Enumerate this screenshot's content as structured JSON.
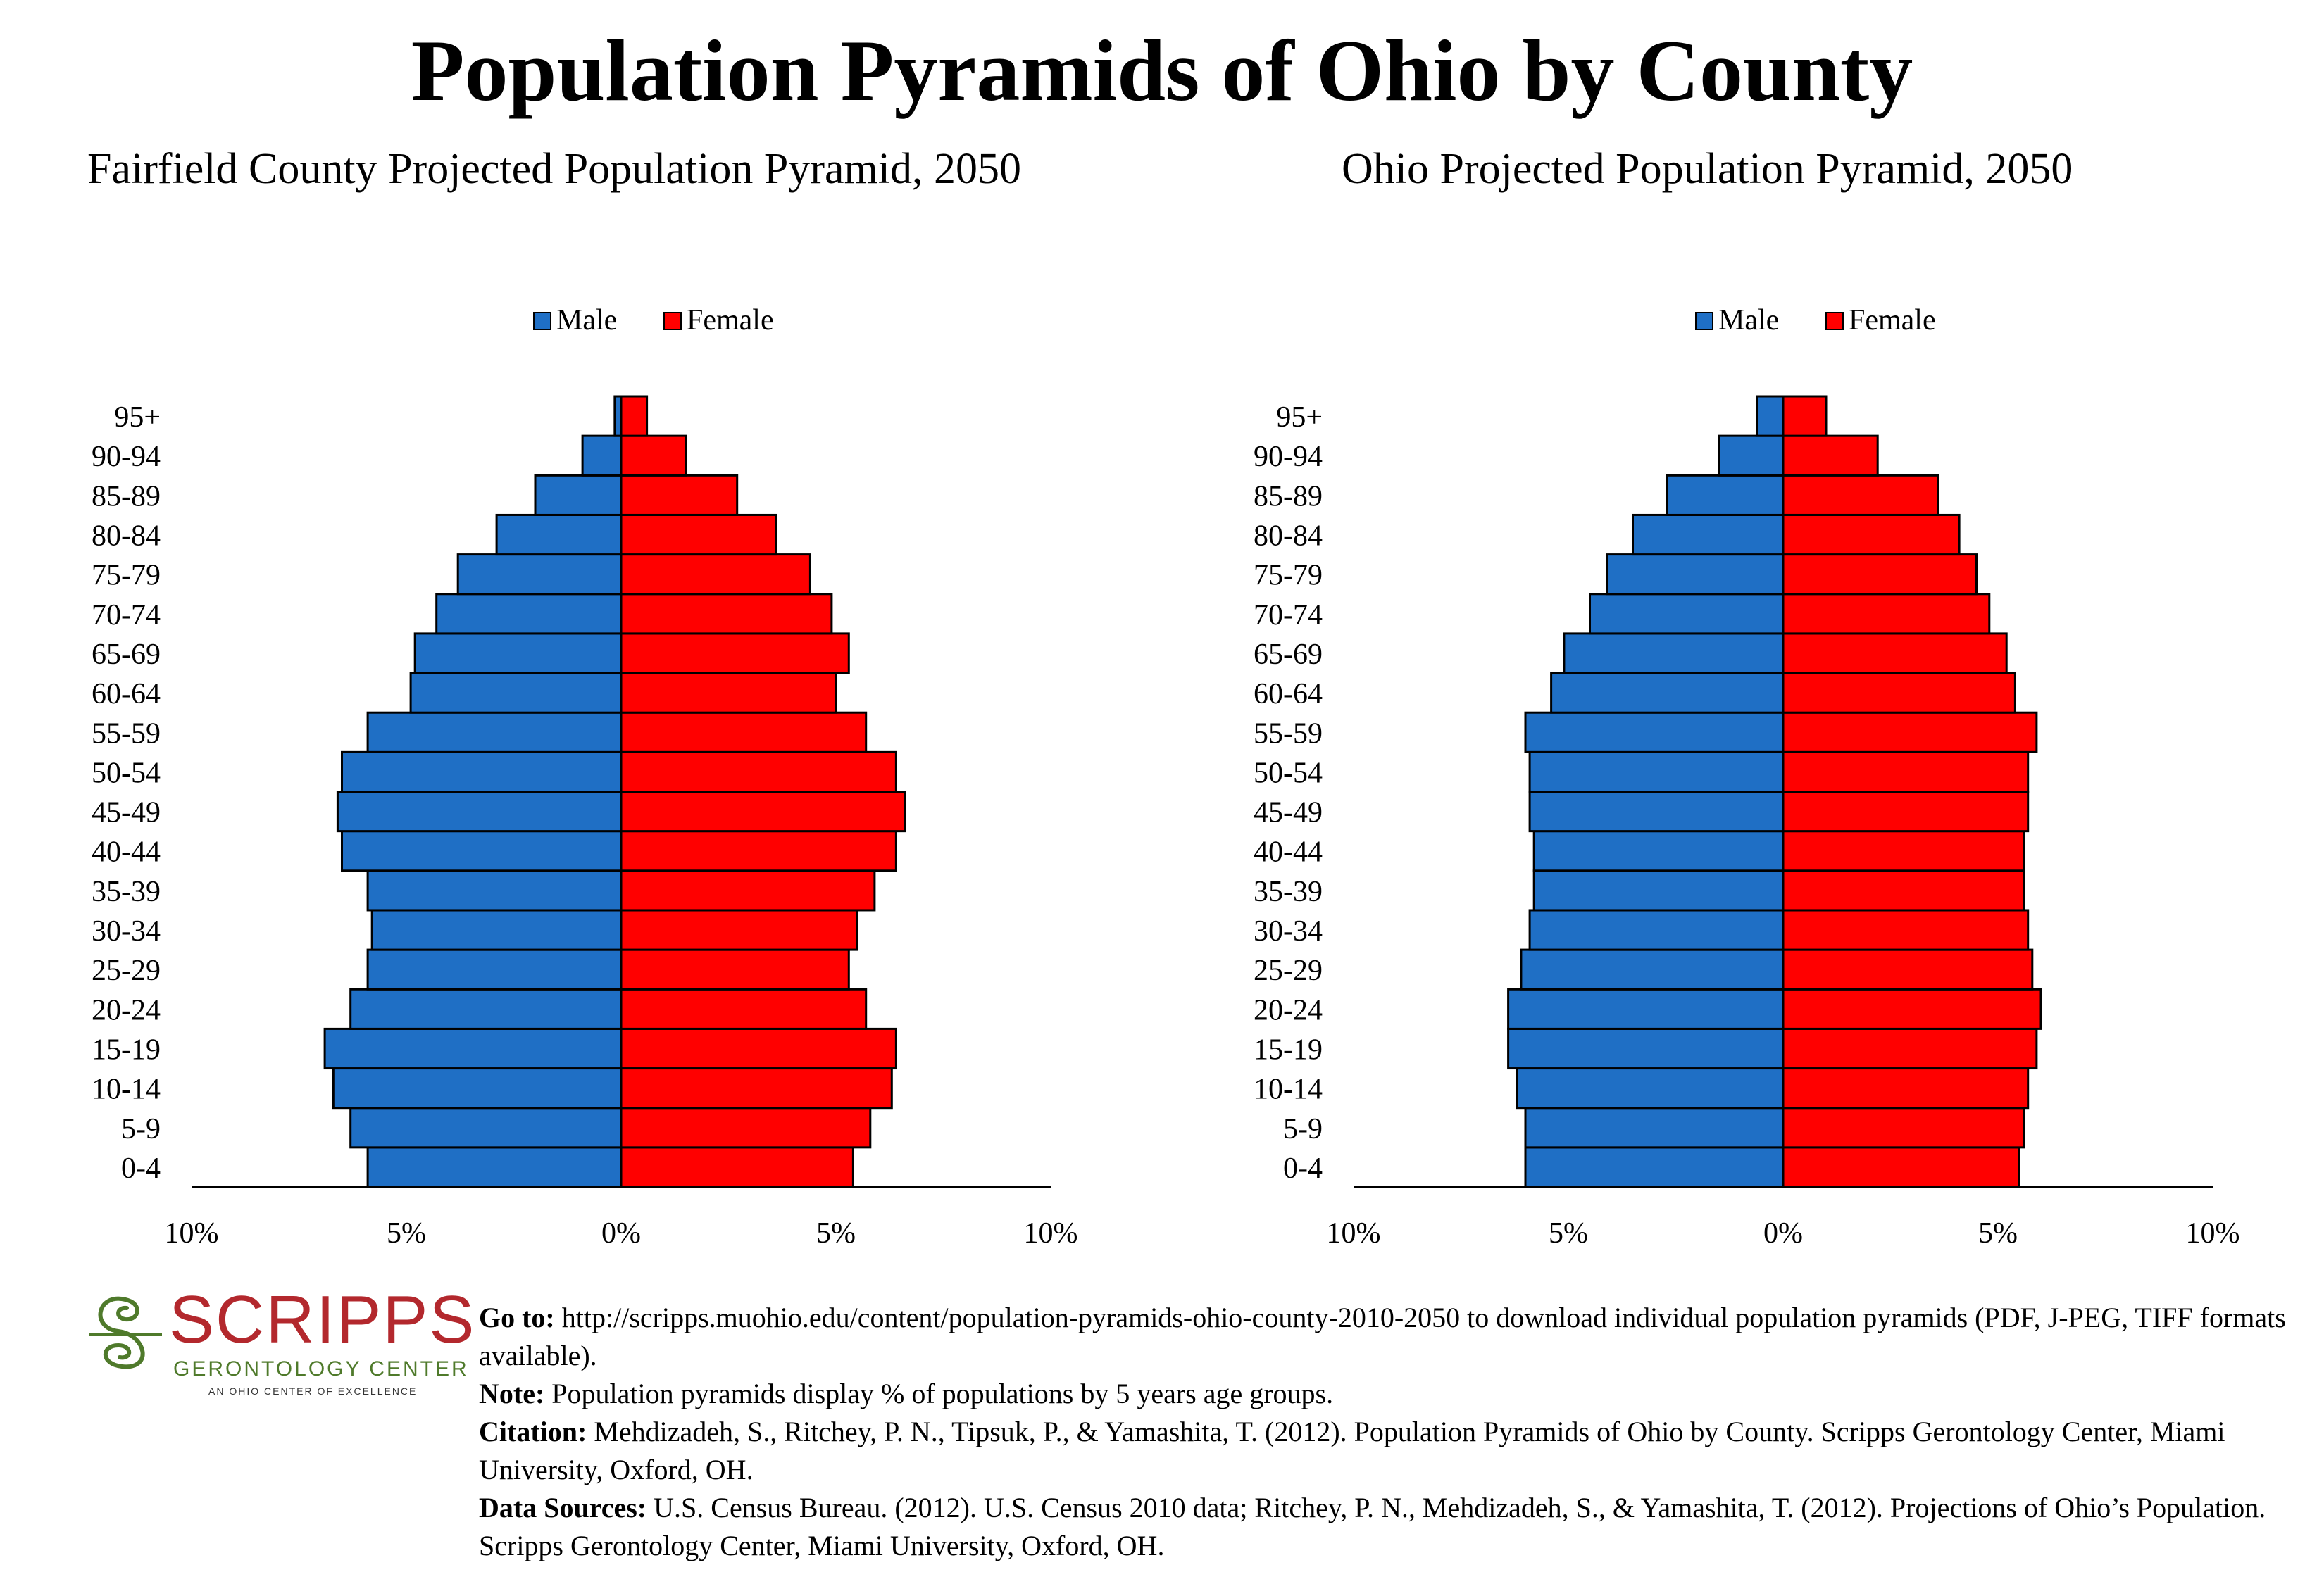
{
  "page": {
    "title": "Population Pyramids of Ohio by County"
  },
  "chart_data": [
    {
      "type": "bar",
      "title": "Fairfield County Projected Population Pyramid, 2050",
      "categories": [
        "0-4",
        "5-9",
        "10-14",
        "15-19",
        "20-24",
        "25-29",
        "30-34",
        "35-39",
        "40-44",
        "45-49",
        "50-54",
        "55-59",
        "60-64",
        "65-69",
        "70-74",
        "75-79",
        "80-84",
        "85-89",
        "90-94",
        "95+"
      ],
      "series": [
        {
          "name": "Male",
          "color": "#1f6fc5",
          "values": [
            5.9,
            6.3,
            6.7,
            6.9,
            6.3,
            5.9,
            5.8,
            5.9,
            6.5,
            6.6,
            6.5,
            5.9,
            4.9,
            4.8,
            4.3,
            3.8,
            2.9,
            2.0,
            0.9,
            0.15
          ]
        },
        {
          "name": "Female",
          "color": "#ff0000",
          "values": [
            5.4,
            5.8,
            6.3,
            6.4,
            5.7,
            5.3,
            5.5,
            5.9,
            6.4,
            6.6,
            6.4,
            5.7,
            5.0,
            5.3,
            4.9,
            4.4,
            3.6,
            2.7,
            1.5,
            0.6
          ]
        }
      ],
      "x_tick_labels": [
        "10%",
        "5%",
        "0%",
        "5%",
        "10%"
      ],
      "xlim": [
        -10,
        10
      ],
      "legend": "top-center"
    },
    {
      "type": "bar",
      "title": "Ohio Projected Population Pyramid, 2050",
      "categories": [
        "0-4",
        "5-9",
        "10-14",
        "15-19",
        "20-24",
        "25-29",
        "30-34",
        "35-39",
        "40-44",
        "45-49",
        "50-54",
        "55-59",
        "60-64",
        "65-69",
        "70-74",
        "75-79",
        "80-84",
        "85-89",
        "90-94",
        "95+"
      ],
      "series": [
        {
          "name": "Male",
          "color": "#1f6fc5",
          "values": [
            6.0,
            6.0,
            6.2,
            6.4,
            6.4,
            6.1,
            5.9,
            5.8,
            5.8,
            5.9,
            5.9,
            6.0,
            5.4,
            5.1,
            4.5,
            4.1,
            3.5,
            2.7,
            1.5,
            0.6
          ]
        },
        {
          "name": "Female",
          "color": "#ff0000",
          "values": [
            5.5,
            5.6,
            5.7,
            5.9,
            6.0,
            5.8,
            5.7,
            5.6,
            5.6,
            5.7,
            5.7,
            5.9,
            5.4,
            5.2,
            4.8,
            4.5,
            4.1,
            3.6,
            2.2,
            1.0
          ]
        }
      ],
      "x_tick_labels": [
        "10%",
        "5%",
        "0%",
        "5%",
        "10%"
      ],
      "xlim": [
        -10,
        10
      ],
      "legend": "top-center"
    }
  ],
  "logo": {
    "name": "SCRIPPS",
    "subtitle": "GERONTOLOGY CENTER",
    "tagline": "AN OHIO CENTER OF EXCELLENCE",
    "name_color": "#b3282d",
    "subtitle_color": "#4f7a2b"
  },
  "footer": {
    "goto_label": "Go to:",
    "goto_text": " http://scripps.muohio.edu/content/population-pyramids-ohio-county-2010-2050 to download individual population pyramids (PDF, J-PEG, TIFF formats available).",
    "note_label": "Note:",
    "note_text": " Population pyramids display % of populations by 5 years age groups.",
    "citation_label": "Citation:",
    "citation_text": " Mehdizadeh, S., Ritchey, P. N., Tipsuk, P., & Yamashita, T. (2012). Population Pyramids of Ohio by County. Scripps Gerontology Center, Miami University, Oxford, OH.",
    "sources_label": "Data Sources:",
    "sources_text": " U.S. Census Bureau. (2012). U.S. Census 2010 data; Ritchey, P. N., Mehdizadeh, S., & Yamashita, T. (2012). Projections of Ohio’s Population. Scripps Gerontology Center, Miami University, Oxford, OH."
  }
}
